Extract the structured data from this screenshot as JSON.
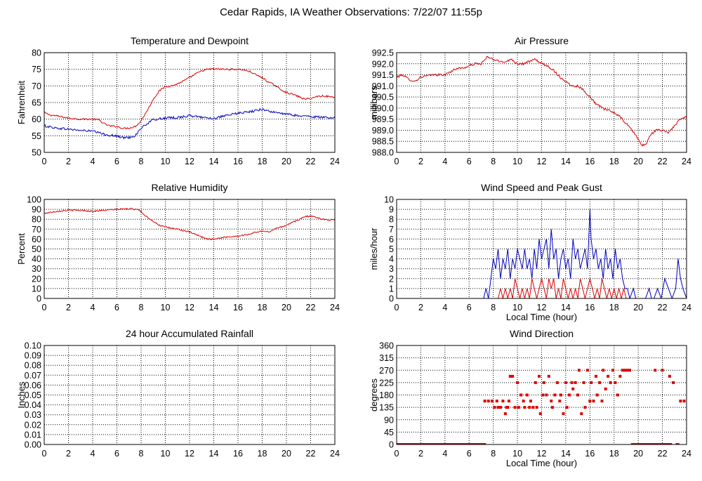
{
  "suptitle": "Cedar Rapids, IA Weather Observations: 7/22/07 11:55p",
  "colors": {
    "red": "#dd0000",
    "blue": "#0000bb"
  },
  "chart_data": [
    {
      "id": "temp",
      "type": "line",
      "title": "Temperature and Dewpoint",
      "xlabel": "",
      "ylabel": "Fahrenheit",
      "xlim": [
        0,
        24
      ],
      "ylim": [
        50,
        80
      ],
      "xticks": [
        "0",
        "2",
        "4",
        "6",
        "8",
        "10",
        "12",
        "14",
        "16",
        "18",
        "20",
        "22",
        "24"
      ],
      "yticks": [
        "50",
        "55",
        "60",
        "65",
        "70",
        "75",
        "80"
      ],
      "series": [
        {
          "color": "#dd0000",
          "noise": 0.25,
          "x": [
            0,
            0.5,
            1,
            2,
            3,
            4,
            4.5,
            5,
            5.5,
            6,
            6.5,
            7,
            7.5,
            7.9,
            8.5,
            9,
            9.5,
            10,
            10.5,
            11,
            11.5,
            12,
            12.5,
            13,
            13.5,
            14,
            15,
            16,
            16.5,
            17,
            17.5,
            18,
            18.5,
            19,
            19.5,
            20,
            20.5,
            21,
            21.5,
            22,
            22.5,
            23,
            23.5,
            24
          ],
          "y": [
            62,
            61.2,
            61,
            60.3,
            60,
            60,
            59.8,
            58.5,
            57.9,
            57.8,
            57.2,
            57.3,
            57.8,
            59,
            62.5,
            66,
            68.5,
            69.8,
            70,
            70.6,
            71.5,
            72.5,
            73.6,
            74.5,
            75,
            75.1,
            75,
            75,
            74.8,
            74.3,
            73.3,
            72.5,
            71.2,
            70.3,
            69,
            68,
            67.5,
            66.8,
            66,
            66.2,
            66.8,
            67,
            66.8,
            66.5
          ]
        },
        {
          "color": "#0000bb",
          "noise": 0.35,
          "x": [
            0,
            1,
            2,
            3,
            4,
            5,
            6,
            6.5,
            7,
            7.5,
            8,
            8.5,
            9,
            10,
            11,
            12,
            13,
            14,
            15,
            16,
            17,
            17.5,
            18,
            18.5,
            19,
            20,
            21,
            22,
            23,
            24
          ],
          "y": [
            58,
            57.3,
            57,
            56.6,
            56.4,
            55.4,
            54.9,
            54.4,
            54.5,
            55,
            57.3,
            58.6,
            59.8,
            60.3,
            60.5,
            61,
            60.6,
            60.2,
            61,
            61.8,
            62.2,
            62.6,
            63,
            62.5,
            62,
            61.5,
            61,
            60.8,
            60.5,
            60.5
          ]
        }
      ]
    },
    {
      "id": "press",
      "type": "line",
      "title": "Air Pressure",
      "xlabel": "",
      "ylabel": "millibars",
      "xlim": [
        0,
        24
      ],
      "ylim": [
        988,
        992.5
      ],
      "xticks": [
        "0",
        "2",
        "4",
        "6",
        "8",
        "10",
        "12",
        "14",
        "16",
        "18",
        "20",
        "22",
        "24"
      ],
      "yticks": [
        "988.0",
        "988.5",
        "989.0",
        "989.5",
        "990.0",
        "990.5",
        "991.0",
        "991.5",
        "992.0",
        "992.5"
      ],
      "series": [
        {
          "color": "#dd0000",
          "noise": 0.05,
          "x": [
            0,
            0.5,
            1,
            1.5,
            2,
            3,
            4,
            5,
            5.5,
            6,
            6.5,
            7,
            7.5,
            8,
            8.5,
            9,
            9.5,
            10,
            10.5,
            11,
            11.5,
            12,
            12.5,
            13,
            13.5,
            14,
            14.5,
            15,
            15.5,
            16,
            16.5,
            17,
            17.5,
            18,
            18.5,
            19,
            19.5,
            20,
            20.3,
            20.7,
            21,
            21.5,
            22,
            22.5,
            23,
            23.5,
            24
          ],
          "y": [
            991.4,
            991.5,
            991.3,
            991.2,
            991.4,
            991.5,
            991.5,
            991.8,
            991.8,
            991.9,
            992.0,
            992.0,
            992.3,
            992.2,
            992.1,
            992.1,
            992.2,
            992.0,
            992.0,
            992.1,
            992.2,
            992.0,
            991.9,
            991.7,
            991.4,
            991.2,
            991.0,
            991.0,
            990.8,
            990.5,
            990.2,
            990.0,
            989.9,
            989.8,
            989.6,
            989.3,
            989.0,
            988.6,
            988.3,
            988.4,
            988.8,
            989.0,
            989.0,
            988.9,
            989.2,
            989.5,
            989.6
          ]
        }
      ]
    },
    {
      "id": "rh",
      "type": "line",
      "title": "Relative Humidity",
      "xlabel": "",
      "ylabel": "Percent",
      "xlim": [
        0,
        24
      ],
      "ylim": [
        0,
        100
      ],
      "xticks": [
        "0",
        "2",
        "4",
        "6",
        "8",
        "10",
        "12",
        "14",
        "16",
        "18",
        "20",
        "22",
        "24"
      ],
      "yticks": [
        "0",
        "10",
        "20",
        "30",
        "40",
        "50",
        "60",
        "70",
        "80",
        "90",
        "100"
      ],
      "series": [
        {
          "color": "#dd0000",
          "noise": 0.7,
          "x": [
            0,
            0.5,
            1,
            2,
            3,
            4,
            5,
            6,
            7,
            7.8,
            8.3,
            9,
            9.5,
            10,
            11,
            12,
            13,
            13.5,
            14,
            15,
            16,
            17,
            17.5,
            18,
            18.5,
            19,
            20,
            20.5,
            21,
            21.5,
            22,
            22.5,
            23,
            23.5,
            24
          ],
          "y": [
            86,
            87,
            88,
            89,
            89,
            88,
            89,
            90,
            90.5,
            90,
            84,
            78,
            74,
            72,
            70,
            67,
            62,
            60,
            60,
            62,
            63,
            65,
            67,
            68,
            67,
            70,
            74,
            77,
            79,
            83,
            83,
            82,
            80,
            79,
            80
          ]
        }
      ]
    },
    {
      "id": "wind",
      "type": "line",
      "title": "Wind Speed and Peak Gust",
      "xlabel": "Local Time (hour)",
      "ylabel": "miles/hour",
      "xlim": [
        0,
        24
      ],
      "ylim": [
        0,
        10
      ],
      "xticks": [
        "0",
        "2",
        "4",
        "6",
        "8",
        "10",
        "12",
        "14",
        "16",
        "18",
        "20",
        "22",
        "24"
      ],
      "yticks": [
        "0",
        "1",
        "2",
        "3",
        "4",
        "5",
        "6",
        "7",
        "8",
        "9",
        "10"
      ],
      "series": [
        {
          "color": "#0000bb",
          "noise": 0,
          "x": [
            0,
            7.2,
            7.4,
            7.6,
            7.8,
            8,
            8.2,
            8.4,
            8.6,
            8.8,
            9,
            9.2,
            9.4,
            9.6,
            9.8,
            10,
            10.2,
            10.4,
            10.6,
            10.8,
            11,
            11.2,
            11.4,
            11.6,
            11.8,
            12,
            12.2,
            12.4,
            12.6,
            12.8,
            13,
            13.2,
            13.4,
            13.6,
            13.8,
            14,
            14.2,
            14.4,
            14.6,
            14.8,
            15,
            15.2,
            15.4,
            15.6,
            15.8,
            16,
            16.1,
            16.3,
            16.5,
            16.7,
            16.9,
            17.1,
            17.3,
            17.5,
            17.7,
            17.9,
            18.1,
            18.3,
            18.5,
            18.7,
            18.9,
            19.1,
            19.3,
            19.6,
            19.8,
            20.6,
            20.9,
            21.1,
            21.3,
            21.6,
            21.9,
            22.2,
            22.5,
            22.8,
            23.1,
            23.3,
            23.5,
            23.7,
            24
          ],
          "y": [
            0,
            0,
            1,
            0,
            2,
            4,
            3,
            5,
            2,
            4,
            3,
            5,
            2,
            4,
            3,
            5,
            4,
            3,
            5,
            3,
            4,
            2,
            5,
            3,
            6,
            4,
            5,
            6,
            3,
            7,
            4,
            5,
            2,
            4,
            5,
            3,
            4,
            2,
            6,
            4,
            5,
            3,
            4,
            5,
            3,
            9,
            6,
            4,
            5,
            3,
            4,
            2,
            5,
            3,
            4,
            2,
            5,
            3,
            4,
            2,
            1,
            1,
            0,
            1,
            0,
            0,
            1,
            0,
            0,
            1,
            0,
            2,
            1,
            0,
            1,
            4,
            2,
            1,
            0
          ]
        },
        {
          "color": "#dd0000",
          "noise": 0,
          "x": [
            0,
            8.4,
            8.6,
            8.8,
            9,
            9.2,
            9.4,
            9.6,
            9.8,
            10,
            10.2,
            10.4,
            10.6,
            10.8,
            11,
            11.2,
            11.4,
            11.6,
            11.8,
            12,
            12.2,
            12.4,
            12.6,
            12.8,
            13,
            13.2,
            13.4,
            13.6,
            13.8,
            14,
            14.2,
            14.4,
            14.6,
            14.8,
            15,
            15.2,
            15.4,
            15.6,
            15.8,
            16,
            16.2,
            16.4,
            16.6,
            16.8,
            17,
            17.2,
            17.4,
            17.6,
            17.8,
            18,
            18.2,
            18.4,
            18.6,
            18.8,
            19,
            24
          ],
          "y": [
            0,
            0,
            1,
            0,
            1,
            0,
            1,
            0,
            2,
            1,
            0,
            1,
            0,
            1,
            0,
            2,
            1,
            0,
            1,
            2,
            1,
            0,
            2,
            1,
            2,
            0,
            1,
            0,
            2,
            1,
            0,
            1,
            0,
            1,
            0,
            2,
            1,
            0,
            1,
            2,
            1,
            0,
            1,
            0,
            2,
            1,
            0,
            1,
            0,
            1,
            0,
            1,
            0,
            1,
            0,
            0
          ]
        }
      ]
    },
    {
      "id": "rain",
      "type": "line",
      "title": "24 hour Accumulated Rainfall",
      "xlabel": "",
      "ylabel": "Inches",
      "xlim": [
        0,
        24
      ],
      "ylim": [
        0,
        0.1
      ],
      "xticks": [
        "0",
        "2",
        "4",
        "6",
        "8",
        "10",
        "12",
        "14",
        "16",
        "18",
        "20",
        "22",
        "24"
      ],
      "yticks": [
        "0.00",
        "0.01",
        "0.02",
        "0.03",
        "0.04",
        "0.05",
        "0.06",
        "0.07",
        "0.08",
        "0.09",
        "0.10"
      ],
      "series": [
        {
          "color": "#dd0000",
          "noise": 0,
          "x": [
            0,
            24
          ],
          "y": [
            0,
            0
          ]
        }
      ]
    },
    {
      "id": "wdir",
      "type": "scatter",
      "title": "Wind Direction",
      "xlabel": "Local Time (hour)",
      "ylabel": "degrees",
      "xlim": [
        0,
        24
      ],
      "ylim": [
        0,
        360
      ],
      "xticks": [
        "0",
        "2",
        "4",
        "6",
        "8",
        "10",
        "12",
        "14",
        "16",
        "18",
        "20",
        "22",
        "24"
      ],
      "yticks": [
        "0",
        "45",
        "90",
        "135",
        "180",
        "225",
        "270",
        "315",
        "360"
      ],
      "zero_runs": [
        [
          0,
          7.4
        ],
        [
          19.4,
          22.8
        ],
        [
          23.1,
          23.4
        ]
      ],
      "series": [
        {
          "color": "#dd0000",
          "noise": 0,
          "x": [
            7.3,
            7.6,
            7.9,
            8.1,
            8.3,
            8.4,
            8.6,
            8.8,
            9,
            9.1,
            9.2,
            9.3,
            9.4,
            9.6,
            9.8,
            10,
            10.1,
            10.3,
            10.5,
            10.6,
            10.8,
            11,
            11.1,
            11.3,
            11.5,
            11.6,
            11.8,
            11.9,
            12.1,
            12.2,
            12.4,
            12.6,
            12.8,
            12.9,
            13.1,
            13.3,
            13.5,
            13.6,
            13.8,
            14,
            14.1,
            14.3,
            14.5,
            14.6,
            14.8,
            15,
            15.1,
            15.3,
            15.5,
            15.6,
            15.8,
            16,
            16.1,
            16.3,
            16.5,
            16.6,
            16.8,
            17,
            17.1,
            17.3,
            17.5,
            17.7,
            17.9,
            18.1,
            18.3,
            18.5,
            18.7,
            18.9,
            19.1,
            19.3,
            21.4,
            22,
            22.6,
            22.9,
            23.5,
            23.8
          ],
          "y": [
            158,
            158,
            158,
            135,
            158,
            135,
            135,
            158,
            112,
            135,
            135,
            158,
            248,
            248,
            135,
            225,
            135,
            180,
            158,
            135,
            180,
            135,
            158,
            135,
            225,
            135,
            248,
            112,
            180,
            225,
            180,
            248,
            158,
            135,
            180,
            225,
            158,
            180,
            112,
            225,
            135,
            180,
            225,
            202,
            225,
            180,
            270,
            112,
            225,
            135,
            270,
            158,
            225,
            158,
            248,
            180,
            225,
            158,
            270,
            202,
            248,
            225,
            270,
            225,
            180,
            248,
            270,
            270,
            270,
            270,
            270,
            270,
            248,
            225,
            158,
            158
          ]
        }
      ]
    }
  ]
}
